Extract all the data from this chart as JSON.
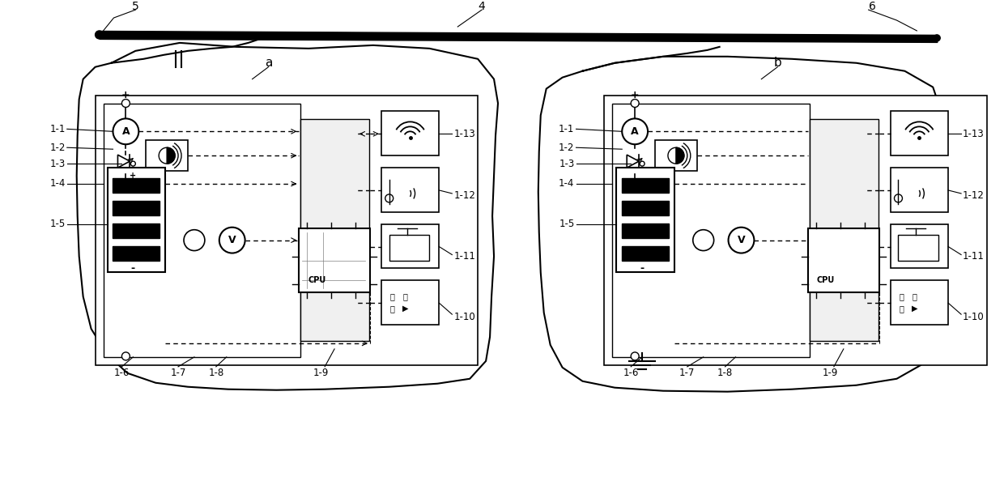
{
  "bg_color": "#ffffff",
  "line_color": "#000000",
  "dashed_color": "#000000",
  "gray_color": "#888888",
  "label_a": "a",
  "label_b": "b",
  "labels_left": [
    "1-1",
    "1-2",
    "1-3",
    "1-4",
    "1-5",
    "1-6",
    "1-7",
    "1-8",
    "1-9",
    "1-10",
    "1-11",
    "1-12",
    "1-13"
  ],
  "labels_right": [
    "1-1",
    "1-2",
    "1-3",
    "1-4",
    "1-5",
    "1-6",
    "1-7",
    "1-8",
    "1-9",
    "1-10",
    "1-11",
    "1-12",
    "1-13"
  ],
  "corner_labels": [
    "4",
    "5",
    "6"
  ]
}
